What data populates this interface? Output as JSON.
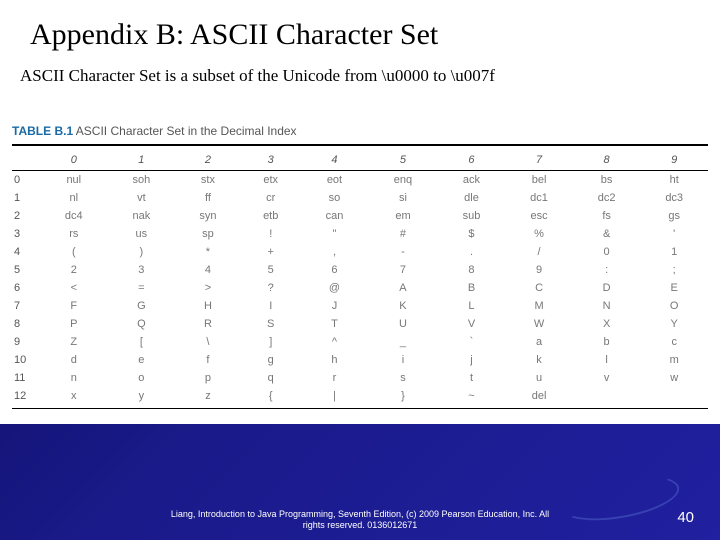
{
  "title": "Appendix B: ASCII Character Set",
  "subtitle": "ASCII Character Set is a subset of the Unicode from \\u0000 to \\u007f",
  "table": {
    "caption_num": "TABLE B.1",
    "caption_text": "ASCII Character Set in the Decimal Index",
    "columns": [
      "0",
      "1",
      "2",
      "3",
      "4",
      "5",
      "6",
      "7",
      "8",
      "9"
    ],
    "rows": [
      {
        "h": "0",
        "c": [
          "nul",
          "soh",
          "stx",
          "etx",
          "eot",
          "enq",
          "ack",
          "bel",
          "bs",
          "ht"
        ]
      },
      {
        "h": "1",
        "c": [
          "nl",
          "vt",
          "ff",
          "cr",
          "so",
          "si",
          "dle",
          "dc1",
          "dc2",
          "dc3"
        ]
      },
      {
        "h": "2",
        "c": [
          "dc4",
          "nak",
          "syn",
          "etb",
          "can",
          "em",
          "sub",
          "esc",
          "fs",
          "gs"
        ]
      },
      {
        "h": "3",
        "c": [
          "rs",
          "us",
          "sp",
          "!",
          "\"",
          "#",
          "$",
          "%",
          "&",
          "'"
        ]
      },
      {
        "h": "4",
        "c": [
          "(",
          ")",
          "*",
          "+",
          ",",
          "-",
          ".",
          "/",
          "0",
          "1"
        ]
      },
      {
        "h": "5",
        "c": [
          "2",
          "3",
          "4",
          "5",
          "6",
          "7",
          "8",
          "9",
          ":",
          ";"
        ]
      },
      {
        "h": "6",
        "c": [
          "<",
          "=",
          ">",
          "?",
          "@",
          "A",
          "B",
          "C",
          "D",
          "E"
        ]
      },
      {
        "h": "7",
        "c": [
          "F",
          "G",
          "H",
          "I",
          "J",
          "K",
          "L",
          "M",
          "N",
          "O"
        ]
      },
      {
        "h": "8",
        "c": [
          "P",
          "Q",
          "R",
          "S",
          "T",
          "U",
          "V",
          "W",
          "X",
          "Y"
        ]
      },
      {
        "h": "9",
        "c": [
          "Z",
          "[",
          "\\",
          "]",
          "^",
          "_",
          "`",
          "a",
          "b",
          "c"
        ]
      },
      {
        "h": "10",
        "c": [
          "d",
          "e",
          "f",
          "g",
          "h",
          "i",
          "j",
          "k",
          "l",
          "m"
        ]
      },
      {
        "h": "11",
        "c": [
          "n",
          "o",
          "p",
          "q",
          "r",
          "s",
          "t",
          "u",
          "v",
          "w"
        ]
      },
      {
        "h": "12",
        "c": [
          "x",
          "y",
          "z",
          "{",
          "|",
          "}",
          "~",
          "del",
          "",
          ""
        ]
      }
    ]
  },
  "footer_line1": "Liang, Introduction to Java Programming, Seventh Edition, (c) 2009 Pearson Education, Inc. All",
  "footer_line2": "rights reserved. 0136012671",
  "page_number": "40"
}
